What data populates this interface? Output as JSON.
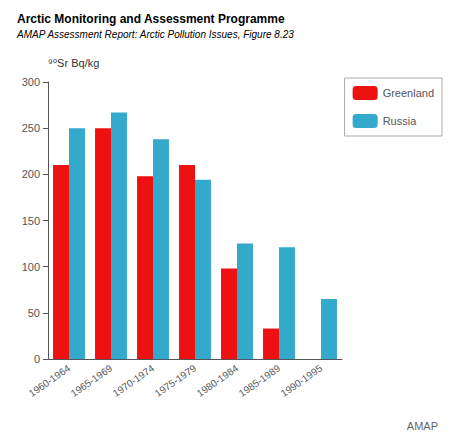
{
  "chart_data": {
    "type": "bar",
    "title": "Arctic Monitoring and Assessment Programme",
    "subtitle": "AMAP Assessment Report: Arctic Pollution Issues, Figure 8.23",
    "y_label": "⁹⁰Sr Bq/kg",
    "categories": [
      "1960-1964",
      "1965-1969",
      "1970-1974",
      "1975-1979",
      "1980-1984",
      "1985-1989",
      "1990-1995"
    ],
    "series": [
      {
        "name": "Greenland",
        "color": "#ee1111",
        "values": [
          210,
          250,
          198,
          210,
          98,
          33,
          0
        ]
      },
      {
        "name": "Russia",
        "color": "#33aacc",
        "values": [
          250,
          267,
          238,
          194,
          125,
          121,
          65
        ]
      }
    ],
    "ylim": [
      0,
      300
    ],
    "yticks": [
      0,
      50,
      100,
      150,
      200,
      250,
      300
    ],
    "grid": false,
    "legend": "right",
    "annotations": [
      "AMAP"
    ]
  }
}
